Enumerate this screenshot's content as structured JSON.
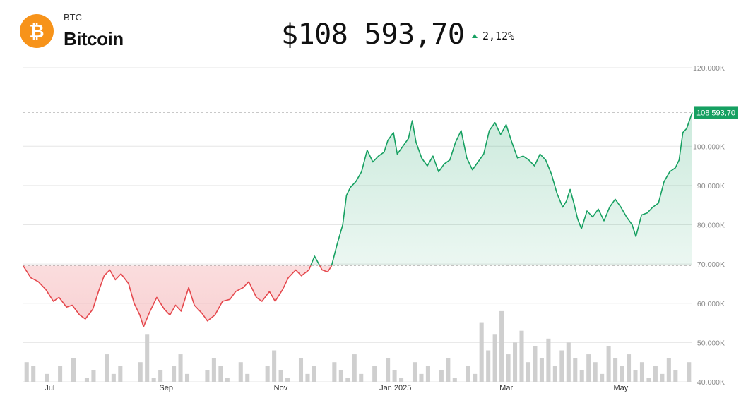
{
  "header": {
    "ticker": "BTC",
    "name": "Bitcoin",
    "price": "$108 593,70",
    "change": "2,12%",
    "logo_icon": "bitcoin-logo-icon",
    "logo_color": "#f7931a"
  },
  "colors": {
    "up": "#16a061",
    "down": "#e5484d",
    "volume": "#cfcfcf",
    "grid": "#e6e6e6"
  },
  "chart_data": {
    "type": "line",
    "xlim": [
      "2024-06-17",
      "2025-06-08"
    ],
    "ylim": [
      40000,
      120000
    ],
    "y_ticks": [
      {
        "value": 120000,
        "label": "120.000K"
      },
      {
        "value": 100000,
        "label": "100.000K"
      },
      {
        "value": 90000,
        "label": "90.000K"
      },
      {
        "value": 80000,
        "label": "80.000K"
      },
      {
        "value": 70000,
        "label": "70.000K"
      },
      {
        "value": 60000,
        "label": "60.000K"
      },
      {
        "value": 50000,
        "label": "50.000K"
      },
      {
        "value": 40000,
        "label": "40.000K"
      }
    ],
    "x_ticks": [
      {
        "date": "2024-07-01",
        "label": "Jul"
      },
      {
        "date": "2024-09-01",
        "label": "Sep"
      },
      {
        "date": "2024-11-01",
        "label": "Nov"
      },
      {
        "date": "2025-01-01",
        "label": "Jan 2025"
      },
      {
        "date": "2025-03-01",
        "label": "Mar"
      },
      {
        "date": "2025-05-01",
        "label": "May"
      }
    ],
    "baseline": 69600,
    "last_value": 108593.7,
    "last_label": "108 593,70",
    "price_series": [
      [
        "2024-06-17",
        69500
      ],
      [
        "2024-06-21",
        66500
      ],
      [
        "2024-06-25",
        65500
      ],
      [
        "2024-06-29",
        63500
      ],
      [
        "2024-07-03",
        60500
      ],
      [
        "2024-07-06",
        61500
      ],
      [
        "2024-07-10",
        59000
      ],
      [
        "2024-07-13",
        59500
      ],
      [
        "2024-07-17",
        57000
      ],
      [
        "2024-07-20",
        56000
      ],
      [
        "2024-07-24",
        58500
      ],
      [
        "2024-07-27",
        63000
      ],
      [
        "2024-07-30",
        67000
      ],
      [
        "2024-08-02",
        68500
      ],
      [
        "2024-08-05",
        66000
      ],
      [
        "2024-08-08",
        67500
      ],
      [
        "2024-08-12",
        65000
      ],
      [
        "2024-08-15",
        60000
      ],
      [
        "2024-08-18",
        57000
      ],
      [
        "2024-08-20",
        54000
      ],
      [
        "2024-08-23",
        57500
      ],
      [
        "2024-08-27",
        61500
      ],
      [
        "2024-08-31",
        58500
      ],
      [
        "2024-09-03",
        57000
      ],
      [
        "2024-09-06",
        59500
      ],
      [
        "2024-09-09",
        58000
      ],
      [
        "2024-09-13",
        64000
      ],
      [
        "2024-09-16",
        59500
      ],
      [
        "2024-09-20",
        57500
      ],
      [
        "2024-09-23",
        55500
      ],
      [
        "2024-09-27",
        57000
      ],
      [
        "2024-10-01",
        60500
      ],
      [
        "2024-10-05",
        61000
      ],
      [
        "2024-10-08",
        63000
      ],
      [
        "2024-10-12",
        64000
      ],
      [
        "2024-10-15",
        65500
      ],
      [
        "2024-10-19",
        61500
      ],
      [
        "2024-10-22",
        60500
      ],
      [
        "2024-10-26",
        63000
      ],
      [
        "2024-10-29",
        60500
      ],
      [
        "2024-11-02",
        63500
      ],
      [
        "2024-11-05",
        66500
      ],
      [
        "2024-11-09",
        68500
      ],
      [
        "2024-11-12",
        67000
      ],
      [
        "2024-11-16",
        68500
      ],
      [
        "2024-11-19",
        72000
      ],
      [
        "2024-11-23",
        68500
      ],
      [
        "2024-11-26",
        68000
      ],
      [
        "2024-11-28",
        69500
      ],
      [
        "2024-12-01",
        75000
      ],
      [
        "2024-12-04",
        80000
      ],
      [
        "2024-12-06",
        87500
      ],
      [
        "2024-12-08",
        89500
      ],
      [
        "2024-12-11",
        91000
      ],
      [
        "2024-12-14",
        93500
      ],
      [
        "2024-12-17",
        99000
      ],
      [
        "2024-12-20",
        96000
      ],
      [
        "2024-12-23",
        97500
      ],
      [
        "2024-12-26",
        98500
      ],
      [
        "2024-12-28",
        101500
      ],
      [
        "2024-12-31",
        103500
      ],
      [
        "2025-01-02",
        98000
      ],
      [
        "2025-01-05",
        100000
      ],
      [
        "2025-01-08",
        102000
      ],
      [
        "2025-01-10",
        106500
      ],
      [
        "2025-01-12",
        101000
      ],
      [
        "2025-01-15",
        97000
      ],
      [
        "2025-01-18",
        95000
      ],
      [
        "2025-01-21",
        97500
      ],
      [
        "2025-01-24",
        93500
      ],
      [
        "2025-01-27",
        95500
      ],
      [
        "2025-01-30",
        96500
      ],
      [
        "2025-02-02",
        101000
      ],
      [
        "2025-02-05",
        104000
      ],
      [
        "2025-02-08",
        97000
      ],
      [
        "2025-02-11",
        94000
      ],
      [
        "2025-02-14",
        96000
      ],
      [
        "2025-02-17",
        98000
      ],
      [
        "2025-02-20",
        104000
      ],
      [
        "2025-02-23",
        106000
      ],
      [
        "2025-02-26",
        103000
      ],
      [
        "2025-03-01",
        105500
      ],
      [
        "2025-03-04",
        101000
      ],
      [
        "2025-03-07",
        97000
      ],
      [
        "2025-03-10",
        97500
      ],
      [
        "2025-03-13",
        96500
      ],
      [
        "2025-03-16",
        95000
      ],
      [
        "2025-03-19",
        98000
      ],
      [
        "2025-03-22",
        96500
      ],
      [
        "2025-03-25",
        93000
      ],
      [
        "2025-03-28",
        88000
      ],
      [
        "2025-03-31",
        84500
      ],
      [
        "2025-04-02",
        86000
      ],
      [
        "2025-04-04",
        89000
      ],
      [
        "2025-04-06",
        85500
      ],
      [
        "2025-04-08",
        81500
      ],
      [
        "2025-04-10",
        79000
      ],
      [
        "2025-04-13",
        83500
      ],
      [
        "2025-04-16",
        82000
      ],
      [
        "2025-04-19",
        84000
      ],
      [
        "2025-04-22",
        81000
      ],
      [
        "2025-04-25",
        84500
      ],
      [
        "2025-04-28",
        86500
      ],
      [
        "2025-05-01",
        84500
      ],
      [
        "2025-05-04",
        82000
      ],
      [
        "2025-05-07",
        80000
      ],
      [
        "2025-05-09",
        77000
      ],
      [
        "2025-05-12",
        82500
      ],
      [
        "2025-05-15",
        83000
      ],
      [
        "2025-05-18",
        84500
      ],
      [
        "2025-05-21",
        85500
      ],
      [
        "2025-05-24",
        91000
      ],
      [
        "2025-05-27",
        93500
      ],
      [
        "2025-05-30",
        94500
      ],
      [
        "2025-06-01",
        96500
      ],
      [
        "2025-06-03",
        103500
      ],
      [
        "2025-06-05",
        104500
      ],
      [
        "2025-06-08",
        108593.7
      ]
    ],
    "volume_bars": [
      45,
      44,
      38,
      42,
      40,
      44,
      36,
      46,
      39,
      41,
      43,
      37,
      47,
      42,
      44,
      40,
      38,
      45,
      52,
      41,
      43,
      39,
      44,
      47,
      42,
      40,
      38,
      43,
      46,
      44,
      41,
      39,
      45,
      42,
      40,
      37,
      44,
      48,
      43,
      41,
      39,
      46,
      42,
      44,
      40,
      38,
      45,
      43,
      41,
      47,
      42,
      39,
      44,
      40,
      46,
      43,
      41,
      38,
      45,
      42,
      44,
      40,
      43,
      46,
      41,
      39,
      44,
      42,
      55,
      48,
      52,
      58,
      47,
      50,
      53,
      45,
      49,
      46,
      51,
      44,
      48,
      50,
      46,
      43,
      47,
      45,
      42,
      49,
      46,
      44,
      47,
      43,
      45,
      41,
      44,
      42,
      46,
      43,
      40,
      45
    ]
  }
}
